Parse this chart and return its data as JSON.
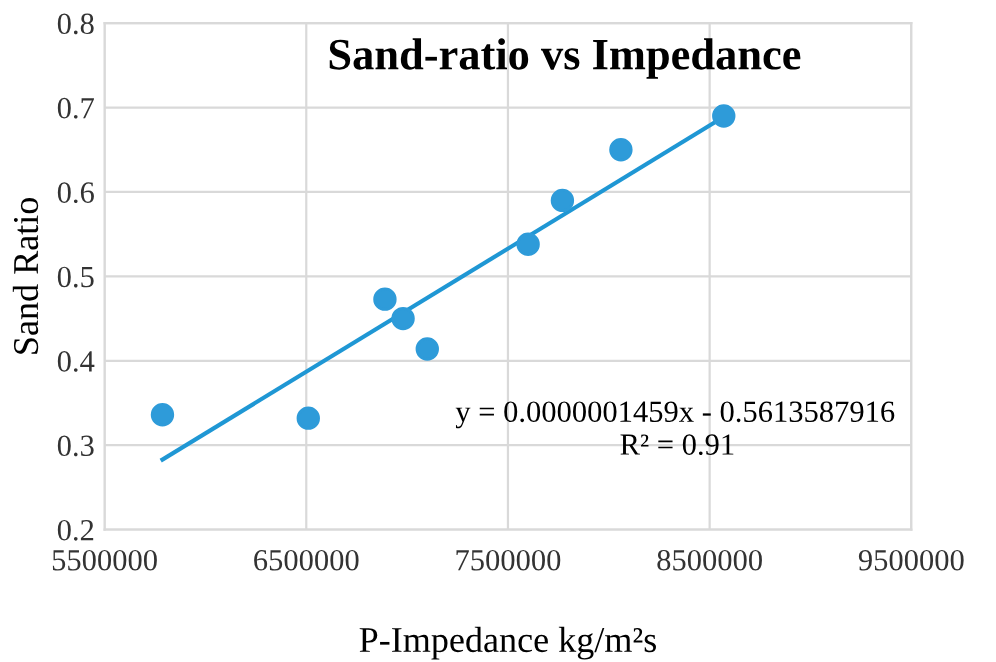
{
  "chart_data": {
    "type": "scatter",
    "title": "Sand-ratio vs Impedance",
    "xlabel": "P-Impedance kg/m²s",
    "ylabel": "Sand Ratio",
    "xlim": [
      5500000,
      9500000
    ],
    "xticks": [
      5500000,
      6500000,
      7500000,
      8500000,
      9500000
    ],
    "ylim": [
      0.2,
      0.8
    ],
    "yticks": [
      0.2,
      0.3,
      0.4,
      0.5,
      0.6,
      0.7,
      0.8
    ],
    "grid": true,
    "legend": false,
    "series": [
      {
        "marker": "circle",
        "color": "#2e9bd9",
        "x": [
          5787000,
          6510000,
          6890000,
          6980000,
          7100000,
          7600000,
          7770000,
          8060000,
          8570000
        ],
        "values": [
          0.336,
          0.332,
          0.473,
          0.45,
          0.414,
          0.538,
          0.59,
          0.65,
          0.69
        ]
      },
      {
        "type": "line",
        "marker": "none",
        "color": "#1f97d4",
        "x": [
          5787000,
          8570000
        ],
        "values": [
          0.283,
          0.689
        ]
      }
    ],
    "annotations": [
      "y = 0.0000001459x - 0.5613587916",
      "R² = 0.91"
    ]
  }
}
